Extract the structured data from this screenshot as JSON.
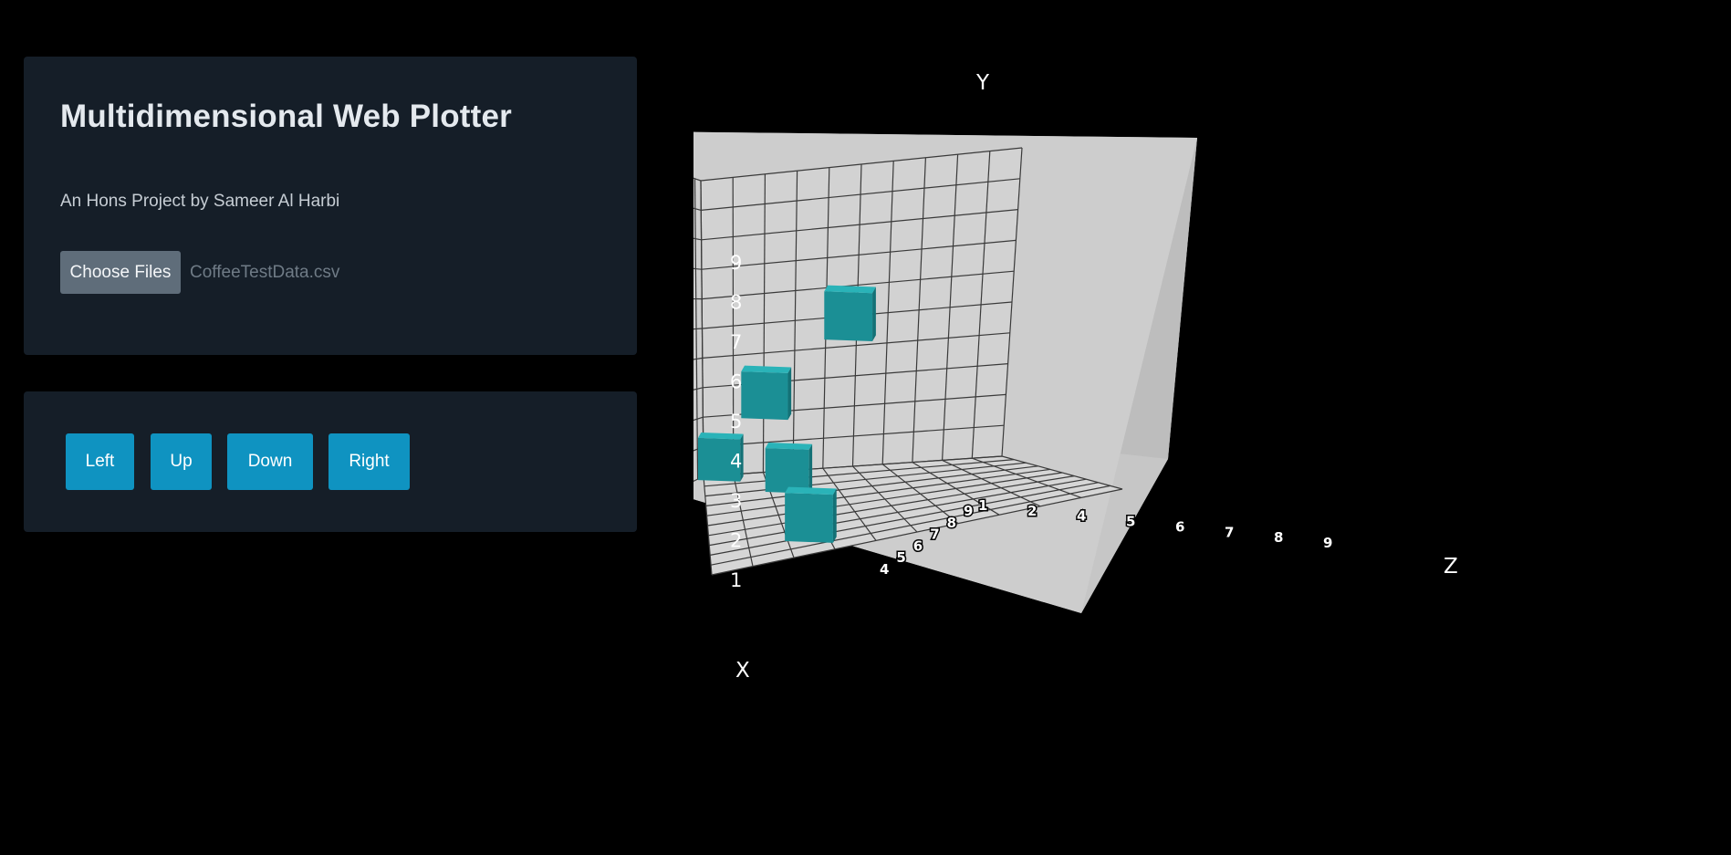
{
  "header": {
    "title": "Multidimensional Web Plotter",
    "subtitle": "An Hons Project by Sameer Al Harbi"
  },
  "file_input": {
    "button_label": "Choose Files",
    "file_name": "CoffeeTestData.csv"
  },
  "controls": {
    "left_label": "Left",
    "up_label": "Up",
    "down_label": "Down",
    "right_label": "Right"
  },
  "colors": {
    "panel": "#151e28",
    "button": "#0f93c1",
    "cube": "#1b8f95",
    "box": "#cbcbcb"
  },
  "chart_data": {
    "type": "scatter",
    "axis_labels": {
      "x": "X",
      "y": "Y",
      "z": "Z"
    },
    "y_ticks": [
      "1",
      "2",
      "3",
      "4",
      "5",
      "6",
      "7",
      "8",
      "9"
    ],
    "x_floor_ticks": [
      "4",
      "5",
      "6",
      "7",
      "8",
      "9"
    ],
    "z_floor_ticks": [
      "1",
      "2",
      "4",
      "5",
      "6",
      "7",
      "8",
      "9"
    ],
    "grid": true,
    "points": [
      {
        "x": 1,
        "y": 1,
        "z": 1
      },
      {
        "x": 3,
        "y": 1,
        "z": 3
      },
      {
        "x": 7,
        "y": 4,
        "z": 2
      },
      {
        "x": 9,
        "y": 1,
        "z": 3
      },
      {
        "x": 9,
        "y": 6,
        "z": 4
      }
    ]
  }
}
